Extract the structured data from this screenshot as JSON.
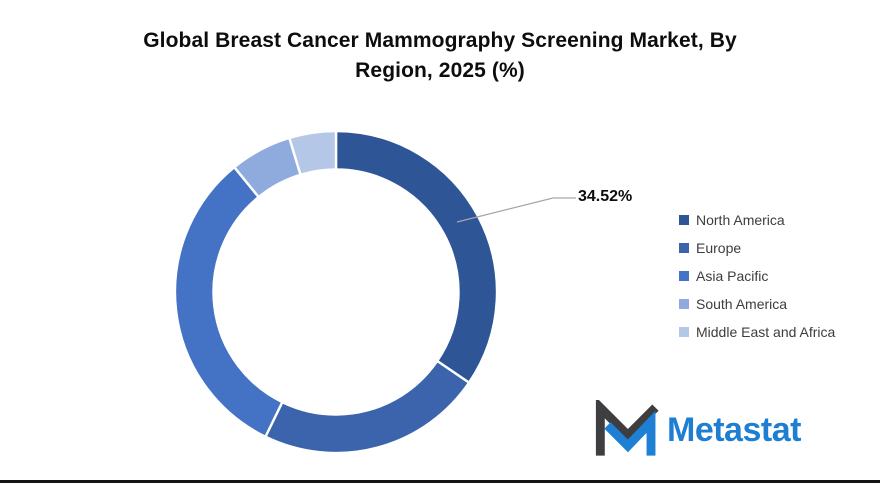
{
  "title": {
    "line1": "Global Breast Cancer Mammography Screening Market, By",
    "line2": "Region, 2025 (%)"
  },
  "chart_data": {
    "type": "pie",
    "subtype": "doughnut",
    "title": "Global Breast Cancer Mammography Screening Market, By Region, 2025 (%)",
    "categories": [
      "North America",
      "Europe",
      "Asia Pacific",
      "South America",
      "Middle East and Africa"
    ],
    "values": [
      34.52,
      22.7,
      31.9,
      6.2,
      4.68
    ],
    "data_label": {
      "text": "34.52%",
      "category": "North America"
    },
    "colors": [
      "#2E5596",
      "#3B64AD",
      "#4472C4",
      "#8FAADC",
      "#B4C7E7"
    ],
    "hole_ratio": 0.76,
    "start_angle_deg": 0,
    "direction": "clockwise",
    "legend_position": "right",
    "legend_text_color": "#3d3d3d",
    "leader_line_color": "#a6a6a6"
  },
  "logo": {
    "text": "Metastat",
    "text_color": "#1E7FD2",
    "mark_dark_color": "#3E3E40",
    "mark_blue_color": "#1E80D4"
  }
}
